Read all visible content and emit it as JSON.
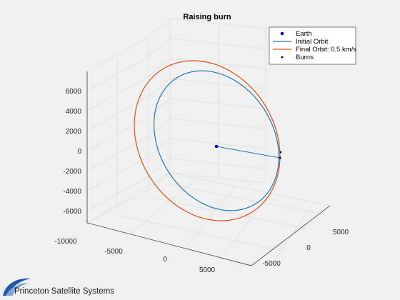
{
  "colors": {
    "earth": "#0000cc",
    "initial_orbit": "#1f77b4",
    "final_orbit": "#d95319",
    "burns": "#000000",
    "logo": "#1b5aa8"
  },
  "logo": {
    "text": "Princeton Satellite Systems"
  },
  "chart_data": {
    "type": "line3d",
    "title": "Raising burn",
    "xlabel": "",
    "ylabel": "",
    "zlabel": "",
    "grid": true,
    "legend_position": "top-right",
    "x_ticks": [
      "-10000",
      "-5000",
      "0",
      "5000"
    ],
    "y_ticks": [
      "-5000",
      "0",
      "5000"
    ],
    "z_ticks": [
      "-6000",
      "-4000",
      "-2000",
      "0",
      "2000",
      "4000",
      "6000"
    ],
    "series": [
      {
        "name": "Earth",
        "type": "point",
        "points": [
          [
            0,
            0,
            0
          ]
        ]
      },
      {
        "name": "Initial Orbit",
        "type": "line",
        "points": [
          [
            5800,
            2000,
            -1200
          ],
          [
            0,
            0,
            0
          ]
        ]
      },
      {
        "name": "Final Orbit: 0.5 km/s",
        "type": "line"
      },
      {
        "name": "Burns",
        "type": "point",
        "points": [
          [
            5800,
            2000,
            -1200
          ]
        ]
      }
    ]
  }
}
